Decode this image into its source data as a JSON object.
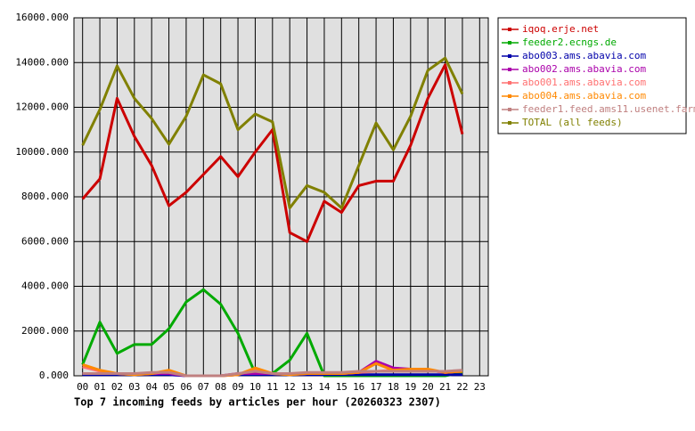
{
  "chart_data": {
    "type": "line",
    "title": "Top 7 incoming feeds by articles per hour (20260323 2307)",
    "categories": [
      "00",
      "01",
      "02",
      "03",
      "04",
      "05",
      "06",
      "07",
      "08",
      "09",
      "10",
      "11",
      "12",
      "13",
      "14",
      "15",
      "16",
      "17",
      "18",
      "19",
      "20",
      "21",
      "22",
      "23"
    ],
    "ylim": [
      0,
      16000
    ],
    "yticks": [
      {
        "value": 0,
        "label": "0.000"
      },
      {
        "value": 2000,
        "label": "2000.000"
      },
      {
        "value": 4000,
        "label": "4000.000"
      },
      {
        "value": 6000,
        "label": "6000.000"
      },
      {
        "value": 8000,
        "label": "8000.000"
      },
      {
        "value": 10000,
        "label": "10000.000"
      },
      {
        "value": 12000,
        "label": "12000.000"
      },
      {
        "value": 14000,
        "label": "14000.000"
      },
      {
        "value": 16000,
        "label": "16000.000"
      }
    ],
    "grid": true,
    "legend": "right",
    "series": [
      {
        "name": "iqoq.erje.net",
        "color": "#cc0000",
        "values": [
          7900,
          8800,
          12400,
          10700,
          9400,
          7600,
          8200,
          9000,
          9800,
          8900,
          10000,
          11000,
          6400,
          6000,
          7800,
          7300,
          8500,
          8700,
          8700,
          10300,
          12400,
          13900,
          10800,
          null
        ]
      },
      {
        "name": "feeder2.ecngs.de",
        "color": "#00aa00",
        "values": [
          500,
          2400,
          1000,
          1400,
          1400,
          2100,
          3300,
          3850,
          3200,
          1900,
          100,
          100,
          700,
          1900,
          0,
          0,
          0,
          0,
          0,
          0,
          0,
          0,
          150,
          null
        ]
      },
      {
        "name": "abo003.ams.abavia.com",
        "color": "#0000aa",
        "values": [
          50,
          50,
          50,
          50,
          50,
          50,
          0,
          0,
          0,
          50,
          50,
          50,
          50,
          50,
          50,
          50,
          50,
          50,
          50,
          50,
          50,
          50,
          50,
          null
        ]
      },
      {
        "name": "abo002.ams.abavia.com",
        "color": "#aa00aa",
        "values": [
          100,
          100,
          100,
          100,
          100,
          100,
          0,
          0,
          0,
          100,
          100,
          100,
          100,
          100,
          100,
          100,
          150,
          650,
          350,
          300,
          250,
          150,
          200,
          null
        ]
      },
      {
        "name": "abo001.ams.abavia.com",
        "color": "#ff7070",
        "values": [
          400,
          200,
          100,
          50,
          100,
          200,
          0,
          0,
          0,
          50,
          300,
          100,
          50,
          100,
          100,
          100,
          150,
          200,
          250,
          250,
          250,
          150,
          200,
          null
        ]
      },
      {
        "name": "abo004.ams.abavia.com",
        "color": "#ff8800",
        "values": [
          500,
          250,
          100,
          50,
          100,
          250,
          0,
          0,
          0,
          50,
          350,
          100,
          50,
          100,
          100,
          100,
          150,
          550,
          250,
          300,
          300,
          150,
          200,
          null
        ]
      },
      {
        "name": "feeder1.feed.ams11.usenet.farm",
        "color": "#c08080",
        "values": [
          100,
          100,
          100,
          100,
          150,
          150,
          0,
          0,
          0,
          100,
          200,
          100,
          100,
          150,
          150,
          150,
          200,
          200,
          200,
          200,
          200,
          200,
          250,
          null
        ]
      },
      {
        "name": "TOTAL (all feeds)",
        "color": "#808000",
        "values": [
          10300,
          11900,
          13850,
          12400,
          11500,
          10350,
          11600,
          13450,
          13050,
          11000,
          11700,
          11350,
          7500,
          8500,
          8200,
          7500,
          9400,
          11300,
          10100,
          11600,
          13650,
          14200,
          12600,
          null
        ]
      }
    ]
  }
}
